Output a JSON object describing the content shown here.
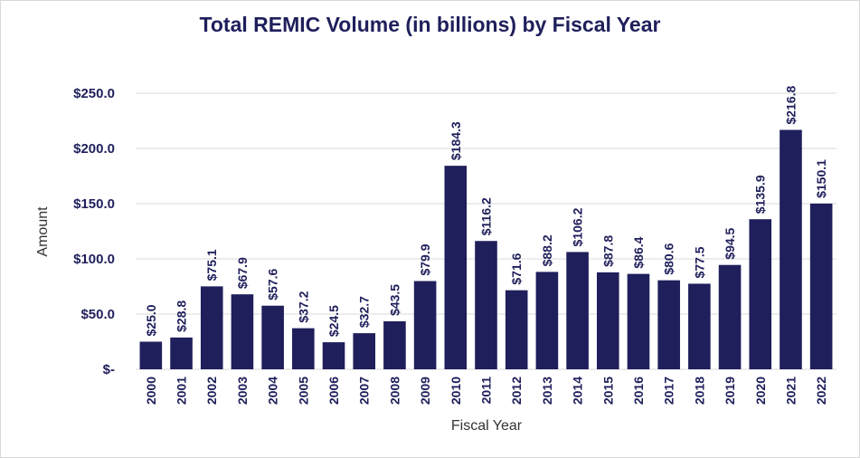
{
  "chart_data": {
    "type": "bar",
    "title": "Total REMIC Volume (in billions) by Fiscal Year",
    "xlabel": "Fiscal Year",
    "ylabel": "Amount",
    "categories": [
      "2000",
      "2001",
      "2002",
      "2003",
      "2004",
      "2005",
      "2006",
      "2007",
      "2008",
      "2009",
      "2010",
      "2011",
      "2012",
      "2013",
      "2014",
      "2015",
      "2016",
      "2017",
      "2018",
      "2019",
      "2020",
      "2021",
      "2022"
    ],
    "values": [
      25.0,
      28.8,
      75.1,
      67.9,
      57.6,
      37.2,
      24.5,
      32.7,
      43.5,
      79.9,
      184.3,
      116.2,
      71.6,
      88.2,
      106.2,
      87.8,
      86.4,
      80.6,
      77.5,
      94.5,
      135.9,
      216.8,
      150.1
    ],
    "data_labels": [
      "$25.0",
      "$28.8",
      "$75.1",
      "$67.9",
      "$57.6",
      "$37.2",
      "$24.5",
      "$32.7",
      "$43.5",
      "$79.9",
      "$184.3",
      "$116.2",
      "$71.6",
      "$88.2",
      "$106.2",
      "$87.8",
      "$86.4",
      "$80.6",
      "$77.5",
      "$94.5",
      "$135.9",
      "$216.8",
      "$150.1"
    ],
    "yticks": [
      0,
      50,
      100,
      150,
      200,
      250
    ],
    "ytick_labels": [
      "$-",
      "$50.0",
      "$100.0",
      "$150.0",
      "$200.0",
      "$250.0"
    ],
    "ylim": [
      0,
      250
    ],
    "grid": true,
    "legend": "none",
    "colors": {
      "bar": "#1f1f5c",
      "grid": "#d9d9d9",
      "text": "#1f1f5c"
    }
  }
}
